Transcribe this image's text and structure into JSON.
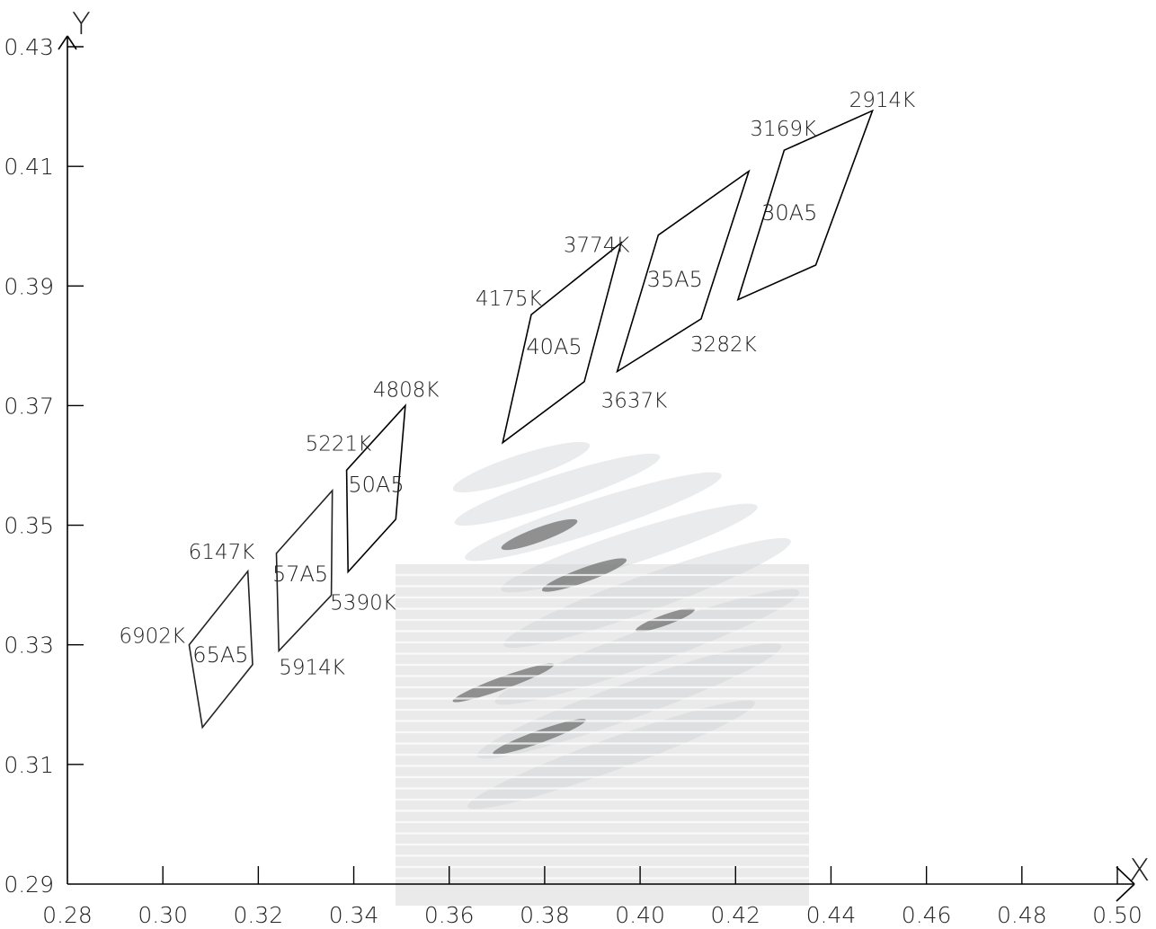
{
  "chart_data": {
    "type": "scatter",
    "title": "",
    "xlabel": "X",
    "ylabel": "Y",
    "xlim": [
      0.28,
      0.5
    ],
    "ylim": [
      0.29,
      0.43
    ],
    "x_ticks": [
      "0.28",
      "0.30",
      "0.32",
      "0.34",
      "0.36",
      "0.38",
      "0.40",
      "0.42",
      "0.44",
      "0.46",
      "0.48",
      "0.50"
    ],
    "y_ticks": [
      "0.29",
      "0.31",
      "0.33",
      "0.35",
      "0.37",
      "0.39",
      "0.41",
      "0.43"
    ],
    "grid": false,
    "quadrangles": [
      {
        "name": "65A5",
        "color": "#222222",
        "vertices": [
          [
            0.3055,
            0.33
          ],
          [
            0.3178,
            0.3423
          ],
          [
            0.3188,
            0.3267
          ],
          [
            0.3083,
            0.3162
          ]
        ],
        "label_pos": [
          0.3121,
          0.3283
        ]
      },
      {
        "name": "57A5",
        "color": "#222222",
        "vertices": [
          [
            0.3238,
            0.3453
          ],
          [
            0.3355,
            0.3558
          ],
          [
            0.3353,
            0.3383
          ],
          [
            0.3243,
            0.329
          ]
        ],
        "label_pos": [
          0.3288,
          0.3418
        ]
      },
      {
        "name": "50A5",
        "color": "#000000",
        "vertices": [
          [
            0.3385,
            0.3592
          ],
          [
            0.3508,
            0.37
          ],
          [
            0.3488,
            0.351
          ],
          [
            0.3388,
            0.3422
          ]
        ],
        "label_pos": [
          0.3447,
          0.3568
        ]
      },
      {
        "name": "40A5",
        "color": "#000000",
        "vertices": [
          [
            0.3772,
            0.3852
          ],
          [
            0.396,
            0.3972
          ],
          [
            0.3883,
            0.374
          ],
          [
            0.3712,
            0.3638
          ]
        ],
        "label_pos": [
          0.382,
          0.3798
        ]
      },
      {
        "name": "35A5",
        "color": "#000000",
        "vertices": [
          [
            0.4038,
            0.3985
          ],
          [
            0.4228,
            0.4092
          ],
          [
            0.4128,
            0.3845
          ],
          [
            0.3952,
            0.3757
          ]
        ],
        "label_pos": [
          0.4073,
          0.3911
        ]
      },
      {
        "name": "30A5",
        "color": "#000000",
        "vertices": [
          [
            0.4302,
            0.4127
          ],
          [
            0.4487,
            0.4193
          ],
          [
            0.4368,
            0.3935
          ],
          [
            0.4205,
            0.3877
          ]
        ],
        "label_pos": [
          0.4313,
          0.4022
        ]
      }
    ],
    "annotations": [
      {
        "text": "6902K",
        "x": 0.3055,
        "y": 0.33
      },
      {
        "text": "6147K",
        "x": 0.3178,
        "y": 0.3423
      },
      {
        "text": "5914K",
        "x": 0.3243,
        "y": 0.329
      },
      {
        "text": "5390K",
        "x": 0.3388,
        "y": 0.3422
      },
      {
        "text": "5221K",
        "x": 0.3385,
        "y": 0.3592
      },
      {
        "text": "4808K",
        "x": 0.3508,
        "y": 0.37
      },
      {
        "text": "4175K",
        "x": 0.3772,
        "y": 0.3852
      },
      {
        "text": "3774K",
        "x": 0.396,
        "y": 0.3972
      },
      {
        "text": "3637K",
        "x": 0.3952,
        "y": 0.3757
      },
      {
        "text": "3282K",
        "x": 0.4128,
        "y": 0.3845
      },
      {
        "text": "3169K",
        "x": 0.4302,
        "y": 0.4127
      },
      {
        "text": "2914K",
        "x": 0.4487,
        "y": 0.4193
      }
    ]
  }
}
